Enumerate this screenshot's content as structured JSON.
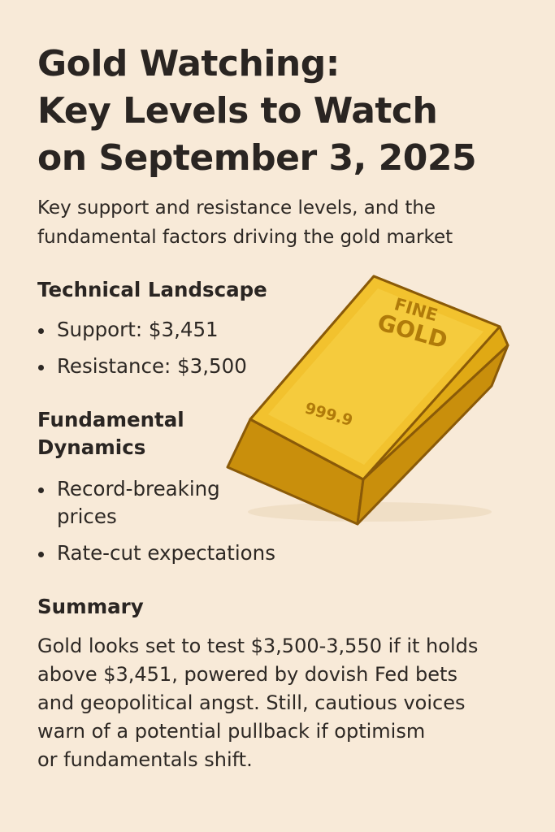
{
  "title": {
    "line1": "Gold Watching:",
    "line2": "Key Levels to Watch",
    "line3": "on September 3, 2025"
  },
  "subtitle": {
    "line1": "Key support and resistance levels, and the",
    "line2": "fundamental factors driving the gold market"
  },
  "technical": {
    "heading": "Technical Landscape",
    "items": [
      {
        "label": "Support: $3,451"
      },
      {
        "label": "Resistance: $3,500"
      }
    ]
  },
  "fundamental": {
    "heading_line1": "Fundamental",
    "heading_line2": "Dynamics",
    "items": [
      {
        "line1": "Record-breaking",
        "line2": "prices"
      },
      {
        "line1": "Rate-cut expectations"
      }
    ]
  },
  "summary": {
    "heading": "Summary",
    "lines": [
      "Gold looks set to test $3,500-3,550 if it holds",
      "above $3,451, powered by dovish Fed bets",
      "and geopolitical angst. Still, cautious voices",
      "warn of a potential pullback if optimism",
      "or fundamentals shift."
    ]
  },
  "gold_bar": {
    "stamp_line1": "FINE",
    "stamp_line2": "GOLD",
    "purity": "999.9",
    "colors": {
      "top": "#f2c22e",
      "front": "#e0a914",
      "side": "#c98f0c",
      "outline": "#8a5a08",
      "engraving": "#b07b0a"
    }
  },
  "colors": {
    "background": "#f8ead8",
    "text": "#2b2622"
  }
}
